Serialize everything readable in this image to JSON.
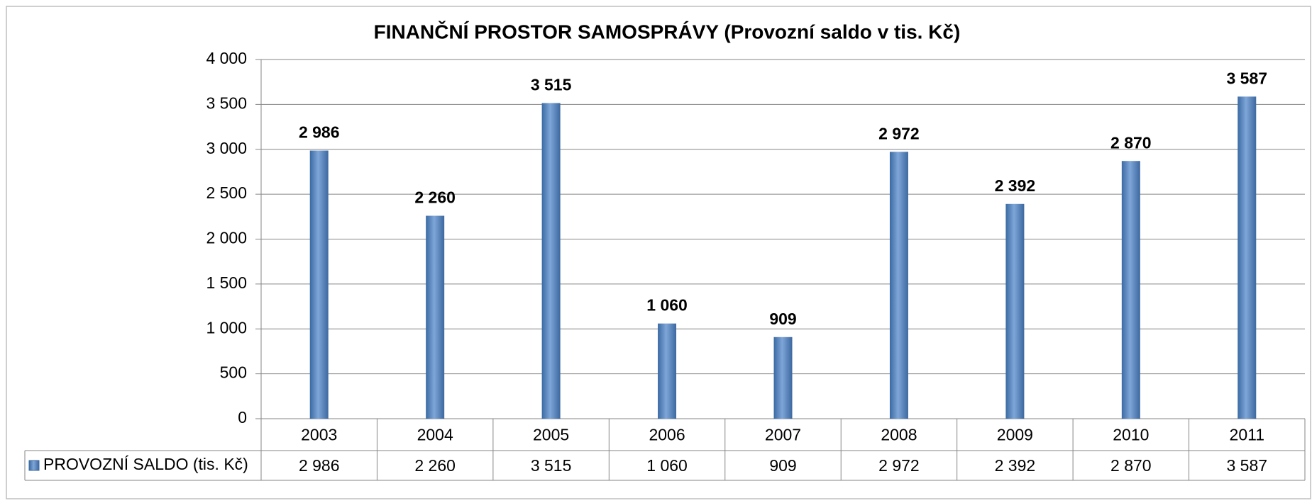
{
  "chart_data": {
    "type": "bar",
    "title": "FINANČNÍ PROSTOR SAMOSPRÁVY (Provozní saldo v tis. Kč)",
    "categories": [
      "2003",
      "2004",
      "2005",
      "2006",
      "2007",
      "2008",
      "2009",
      "2010",
      "2011"
    ],
    "series": [
      {
        "name": "PROVOZNÍ SALDO (tis. Kč)",
        "color": "#4f81bd",
        "values": [
          2986,
          2260,
          3515,
          1060,
          909,
          2972,
          2392,
          2870,
          3587
        ],
        "value_labels": [
          "2 986",
          "2 260",
          "3 515",
          "1 060",
          "909",
          "2 972",
          "2 392",
          "2 870",
          "3 587"
        ]
      }
    ],
    "ylim": [
      0,
      4000
    ],
    "yticks": [
      0,
      500,
      {
        "value": 1000,
        "label": "1 000"
      },
      {
        "value": 1500,
        "label": "1 500"
      },
      {
        "value": 2000,
        "label": "2 000"
      },
      {
        "value": 2500,
        "label": "2 500"
      },
      {
        "value": 3000,
        "label": "3 000"
      },
      {
        "value": 3500,
        "label": "3 500"
      },
      {
        "value": 4000,
        "label": "4 000"
      }
    ],
    "grid": true
  }
}
